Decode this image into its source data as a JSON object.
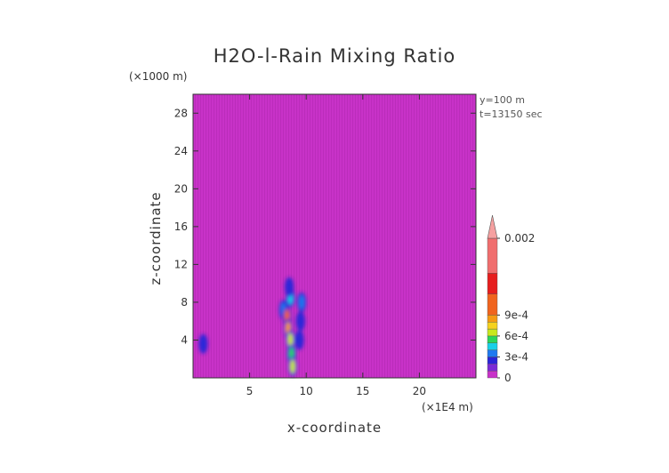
{
  "chart_data": {
    "type": "heatmap",
    "title": "H2O-l-Rain Mixing Ratio",
    "xlabel": "x-coordinate",
    "ylabel": "z-coordinate",
    "x_units": "(×1E4 m)",
    "y_units": "(×1000 m)",
    "xlim": [
      0,
      25
    ],
    "ylim": [
      0,
      30
    ],
    "x_ticks": [
      5,
      10,
      15,
      20
    ],
    "y_ticks": [
      4,
      8,
      12,
      16,
      20,
      24,
      28
    ],
    "info_lines": [
      "y=100 m",
      "t=13150 sec"
    ],
    "background_value": 0,
    "colorbar": {
      "levels": [
        {
          "value": 0.0,
          "color": "#c832c8"
        },
        {
          "value": 0.0001,
          "color": "#7b2bd6"
        },
        {
          "value": 0.0002,
          "color": "#2a25d8"
        },
        {
          "value": 0.0003,
          "color": "#1f7af0"
        },
        {
          "value": 0.0004,
          "color": "#19d0e8"
        },
        {
          "value": 0.0005,
          "color": "#2bd65a"
        },
        {
          "value": 0.0006,
          "color": "#c8e81e"
        },
        {
          "value": 0.0007,
          "color": "#f5d21e"
        },
        {
          "value": 0.0008,
          "color": "#f59a14"
        },
        {
          "value": 0.0009,
          "color": "#f0641e"
        },
        {
          "value": 0.0012,
          "color": "#e61e1e"
        },
        {
          "value": 0.0015,
          "color": "#f06e6e"
        },
        {
          "value": 0.002,
          "color": "#f5a0a0"
        }
      ],
      "tick_labels": [
        {
          "value": 0,
          "label": "0"
        },
        {
          "value": 0.0003,
          "label": "3e-4"
        },
        {
          "value": 0.0006,
          "label": "6e-4"
        },
        {
          "value": 0.0009,
          "label": "9e-4"
        },
        {
          "value": 0.002,
          "label": "0.002"
        }
      ]
    },
    "features": [
      {
        "name": "main-rain-core",
        "points": [
          {
            "x": 8.0,
            "z": 7.2,
            "v": 0.0003
          },
          {
            "x": 8.3,
            "z": 6.5,
            "v": 0.0011
          },
          {
            "x": 8.4,
            "z": 5.2,
            "v": 0.0008
          },
          {
            "x": 8.6,
            "z": 4.0,
            "v": 0.0006
          },
          {
            "x": 8.7,
            "z": 2.5,
            "v": 0.0005
          },
          {
            "x": 8.8,
            "z": 1.2,
            "v": 0.0006
          },
          {
            "x": 8.6,
            "z": 8.5,
            "v": 0.0004
          },
          {
            "x": 8.5,
            "z": 9.6,
            "v": 0.0002
          }
        ]
      },
      {
        "name": "secondary-rain-shaft",
        "points": [
          {
            "x": 9.6,
            "z": 8.0,
            "v": 0.0003
          },
          {
            "x": 9.5,
            "z": 6.0,
            "v": 0.0002
          },
          {
            "x": 9.4,
            "z": 4.0,
            "v": 0.0002
          }
        ]
      },
      {
        "name": "small-cell",
        "points": [
          {
            "x": 0.9,
            "z": 3.6,
            "v": 0.0002
          }
        ]
      }
    ]
  }
}
